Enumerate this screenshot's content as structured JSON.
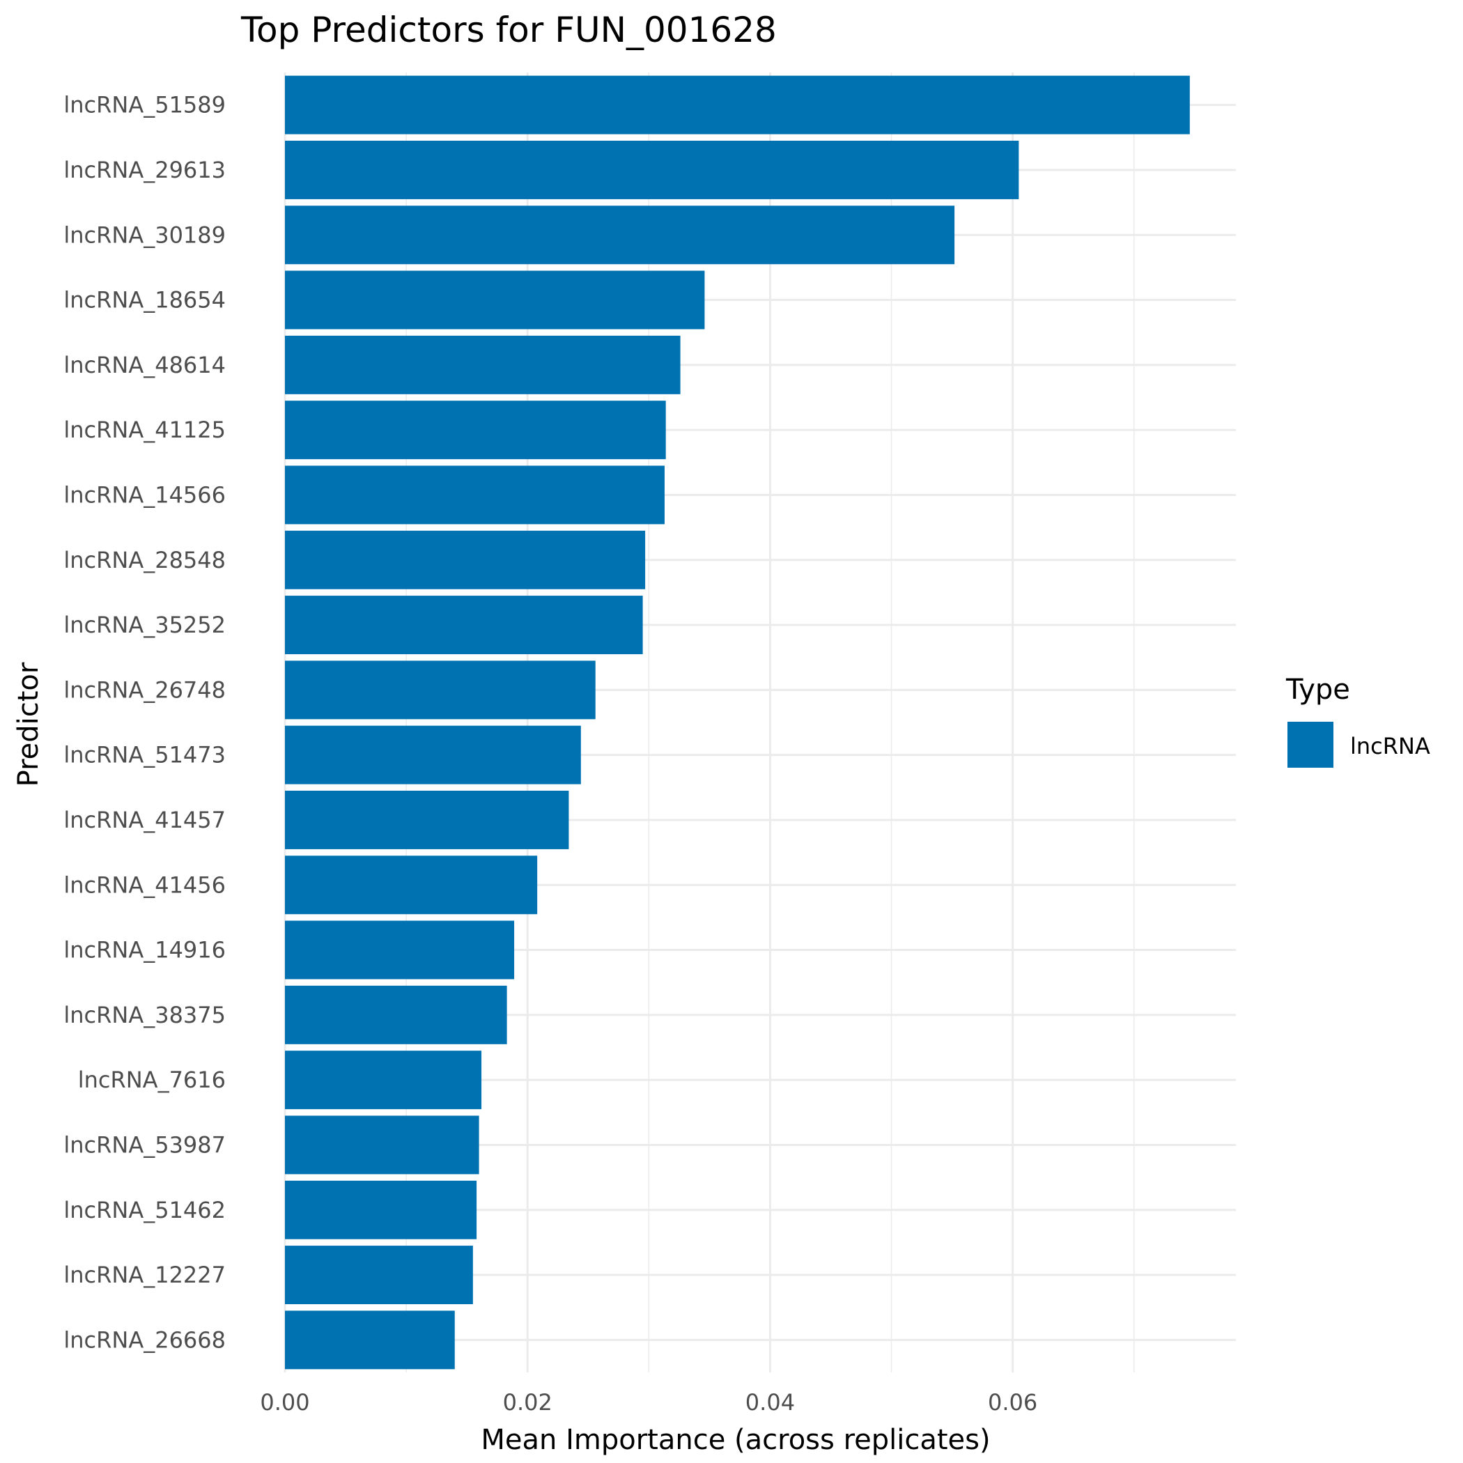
{
  "chart_data": {
    "type": "bar",
    "orientation": "horizontal",
    "title": "Top Predictors for FUN_001628",
    "xlabel": "Mean Importance (across replicates)",
    "ylabel": "Predictor",
    "xlim": [
      0,
      0.0784
    ],
    "x_ticks": [
      "0.00",
      "0.02",
      "0.04",
      "0.06"
    ],
    "x_tick_values": [
      0,
      0.02,
      0.04,
      0.06
    ],
    "grid": true,
    "legend": {
      "title": "Type",
      "position": "right",
      "entries": [
        {
          "label": "lncRNA",
          "color": "#0072B2"
        }
      ]
    },
    "bar_color": "#0072B2",
    "categories": [
      "lncRNA_51589",
      "lncRNA_29613",
      "lncRNA_30189",
      "lncRNA_18654",
      "lncRNA_48614",
      "lncRNA_41125",
      "lncRNA_14566",
      "lncRNA_28548",
      "lncRNA_35252",
      "lncRNA_26748",
      "lncRNA_51473",
      "lncRNA_41457",
      "lncRNA_41456",
      "lncRNA_14916",
      "lncRNA_38375",
      "lncRNA_7616",
      "lncRNA_53987",
      "lncRNA_51462",
      "lncRNA_12227",
      "lncRNA_26668"
    ],
    "values": [
      0.0746,
      0.0605,
      0.0552,
      0.0346,
      0.0326,
      0.0314,
      0.0313,
      0.0297,
      0.0295,
      0.0256,
      0.0244,
      0.0234,
      0.0208,
      0.0189,
      0.0183,
      0.0162,
      0.016,
      0.0158,
      0.0155,
      0.014
    ]
  }
}
